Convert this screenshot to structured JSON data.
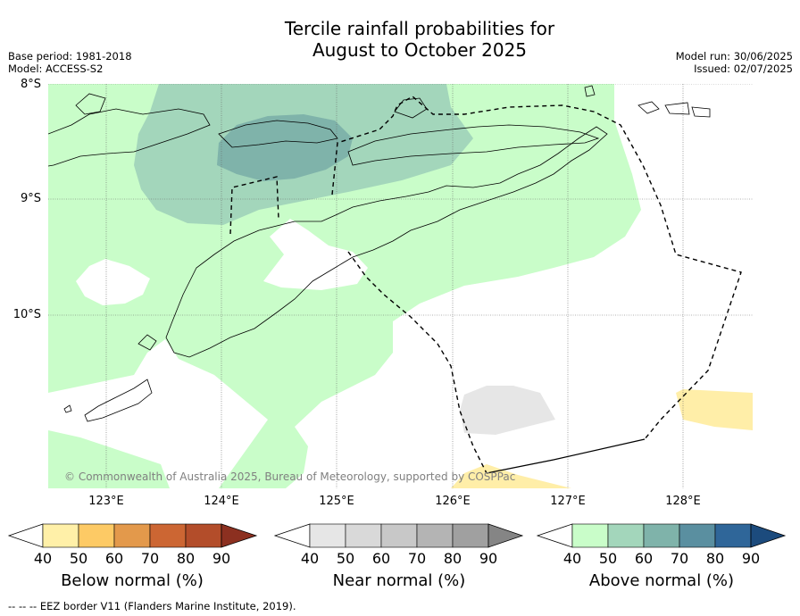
{
  "title_line1": "Tercile rainfall probabilities for",
  "title_line2": "August to October 2025",
  "base_period": "Base period: 1981-2018",
  "model": "Model: ACCESS-S2",
  "model_run": "Model run: 30/06/2025",
  "issued": "Issued: 02/07/2025",
  "lat_labels": [
    "8°S",
    "9°S",
    "10°S"
  ],
  "lon_labels": [
    "123°E",
    "124°E",
    "125°E",
    "126°E",
    "127°E",
    "128°E"
  ],
  "copyright": "© Commonwealth of Australia 2025, Bureau of Meteorology, supported by COSPPac",
  "colorbars": [
    {
      "title": "Below normal (%)",
      "ticks": [
        "40",
        "50",
        "60",
        "70",
        "80",
        "90"
      ],
      "colors": [
        "#fff0a8",
        "#fdca65",
        "#e3994b",
        "#cc6633",
        "#b34d2a",
        "#8c3020"
      ]
    },
    {
      "title": "Near normal (%)",
      "ticks": [
        "40",
        "50",
        "60",
        "70",
        "80",
        "90"
      ],
      "colors": [
        "#e6e6e6",
        "#d9d9d9",
        "#c8c8c8",
        "#b4b4b4",
        "#a0a0a0",
        "#858585"
      ]
    },
    {
      "title": "Above normal (%)",
      "ticks": [
        "40",
        "50",
        "60",
        "70",
        "80",
        "90"
      ],
      "colors": [
        "#c9fdc9",
        "#a3d6bb",
        "#7fb3aa",
        "#5a8fa0",
        "#2f6699",
        "#1c4b7d"
      ]
    }
  ],
  "footer": "--  --  -- EEZ border V11 (Flanders Marine Institute, 2019)."
}
